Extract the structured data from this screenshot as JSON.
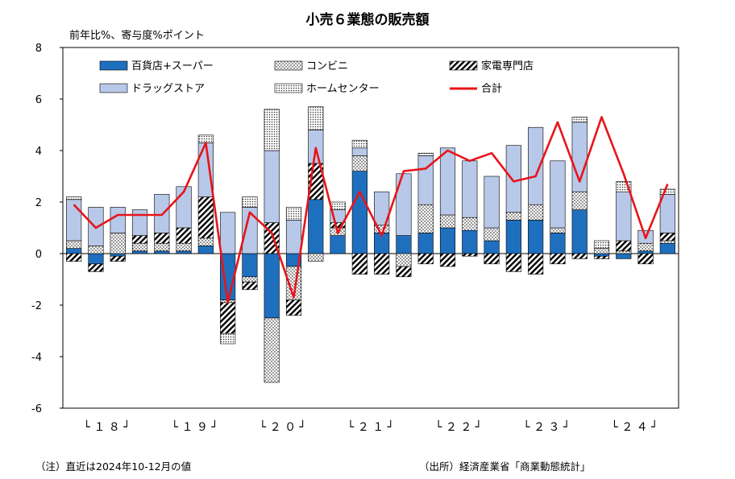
{
  "chart_data": {
    "type": "bar",
    "stacked": true,
    "title": "小売６業態の販売額",
    "ylabel": "前年比%、寄与度%ポイント",
    "ylim": [
      -6,
      8
    ],
    "yticks": [
      8,
      6,
      4,
      2,
      0,
      -2,
      -4,
      -6
    ],
    "x_period_labels": [
      {
        "label": "└ １ ８ ┘",
        "start": 0,
        "end": 3
      },
      {
        "label": "└ １ ９ ┘",
        "start": 4,
        "end": 7
      },
      {
        "label": "└ ２ ０ ┘",
        "start": 8,
        "end": 11
      },
      {
        "label": "└ ２ １ ┘",
        "start": 12,
        "end": 15
      },
      {
        "label": "└ ２ ２ ┘",
        "start": 16,
        "end": 19
      },
      {
        "label": "└ ２ ３ ┘",
        "start": 20,
        "end": 23
      },
      {
        "label": "└ ２ ４ ┘",
        "start": 24,
        "end": 27
      }
    ],
    "categories": [
      "18Q1",
      "18Q2",
      "18Q3",
      "18Q4",
      "19Q1",
      "19Q2",
      "19Q3",
      "19Q4",
      "20Q1",
      "20Q2",
      "20Q3",
      "20Q4",
      "21Q1",
      "21Q2",
      "21Q3",
      "21Q4",
      "22Q1",
      "22Q2",
      "22Q3",
      "22Q4",
      "23Q1",
      "23Q2",
      "23Q3",
      "23Q4",
      "24Q1",
      "24Q2",
      "24Q3",
      "24Q4"
    ],
    "series": [
      {
        "name": "百貨店+スーパー",
        "key": "dept",
        "color": "#1f6fbf",
        "pattern": "solid",
        "values": [
          0.2,
          -0.4,
          -0.1,
          0.1,
          0.1,
          0.1,
          0.3,
          -1.8,
          -0.9,
          -2.5,
          -0.5,
          2.1,
          0.7,
          3.2,
          0.8,
          0.7,
          0.8,
          1.0,
          0.9,
          0.5,
          1.3,
          1.3,
          0.8,
          1.7,
          -0.1,
          -0.2,
          0.1,
          0.4
        ]
      },
      {
        "name": "コンビニ",
        "key": "conv",
        "color": "#ffffff",
        "pattern": "dots",
        "values": [
          0.3,
          0.3,
          0.8,
          0.3,
          0.3,
          0.3,
          0.3,
          -0.1,
          -0.2,
          -2.5,
          -1.3,
          -0.3,
          0.3,
          0.6,
          0.3,
          -0.5,
          1.1,
          0.5,
          0.5,
          0.5,
          0.3,
          0.6,
          0.2,
          0.7,
          0.2,
          0.1,
          0.3,
          0.1
        ]
      },
      {
        "name": "家電専門店",
        "key": "elec",
        "color": "#ffffff",
        "pattern": "hatch",
        "values": [
          -0.3,
          -0.3,
          -0.2,
          0.3,
          0.4,
          0.6,
          1.6,
          -1.2,
          -0.3,
          1.2,
          -0.6,
          1.4,
          0.2,
          -0.8,
          -0.8,
          -0.4,
          -0.4,
          -0.5,
          -0.1,
          -0.4,
          -0.7,
          -0.8,
          -0.4,
          -0.2,
          -0.1,
          0.4,
          -0.4,
          0.3
        ]
      },
      {
        "name": "ドラッグストア",
        "key": "drug",
        "color": "#b8c8e8",
        "pattern": "solid",
        "values": [
          1.6,
          1.5,
          1.0,
          1.0,
          1.5,
          1.6,
          2.1,
          1.6,
          1.8,
          2.8,
          1.3,
          1.3,
          0.5,
          0.3,
          1.3,
          2.4,
          1.9,
          2.6,
          2.2,
          2.0,
          2.6,
          3.0,
          2.6,
          2.7,
          0.0,
          1.9,
          0.5,
          1.5
        ]
      },
      {
        "name": "ホームセンター",
        "key": "home",
        "color": "#ffffff",
        "pattern": "dots2",
        "values": [
          0.1,
          0.0,
          0.0,
          0.0,
          0.0,
          0.0,
          0.3,
          -0.4,
          0.4,
          1.6,
          0.5,
          0.9,
          0.3,
          0.3,
          0.0,
          0.0,
          0.1,
          0.0,
          0.0,
          0.0,
          0.0,
          0.0,
          0.0,
          0.2,
          0.3,
          0.4,
          0.0,
          0.2
        ]
      }
    ],
    "total": {
      "name": "合計",
      "color": "#e8141a",
      "values": [
        1.9,
        1.0,
        1.5,
        1.5,
        1.5,
        2.4,
        4.3,
        -1.9,
        1.6,
        0.8,
        -1.7,
        4.1,
        0.8,
        2.4,
        0.7,
        3.2,
        3.3,
        4.0,
        3.6,
        3.9,
        2.8,
        3.0,
        5.1,
        2.8,
        5.3,
        3.1,
        0.6,
        2.7
      ]
    },
    "legend": [
      {
        "label": "百貨店+スーパー",
        "key": "dept"
      },
      {
        "label": "コンビニ",
        "key": "conv"
      },
      {
        "label": "家電専門店",
        "key": "elec"
      },
      {
        "label": "ドラッグストア",
        "key": "drug"
      },
      {
        "label": "ホームセンター",
        "key": "home"
      },
      {
        "label": "合計",
        "key": "total"
      }
    ]
  },
  "notes": {
    "left": "（注）直近は2024年10-12月の値",
    "right": "（出所）経済産業省「商業動態統計」"
  }
}
